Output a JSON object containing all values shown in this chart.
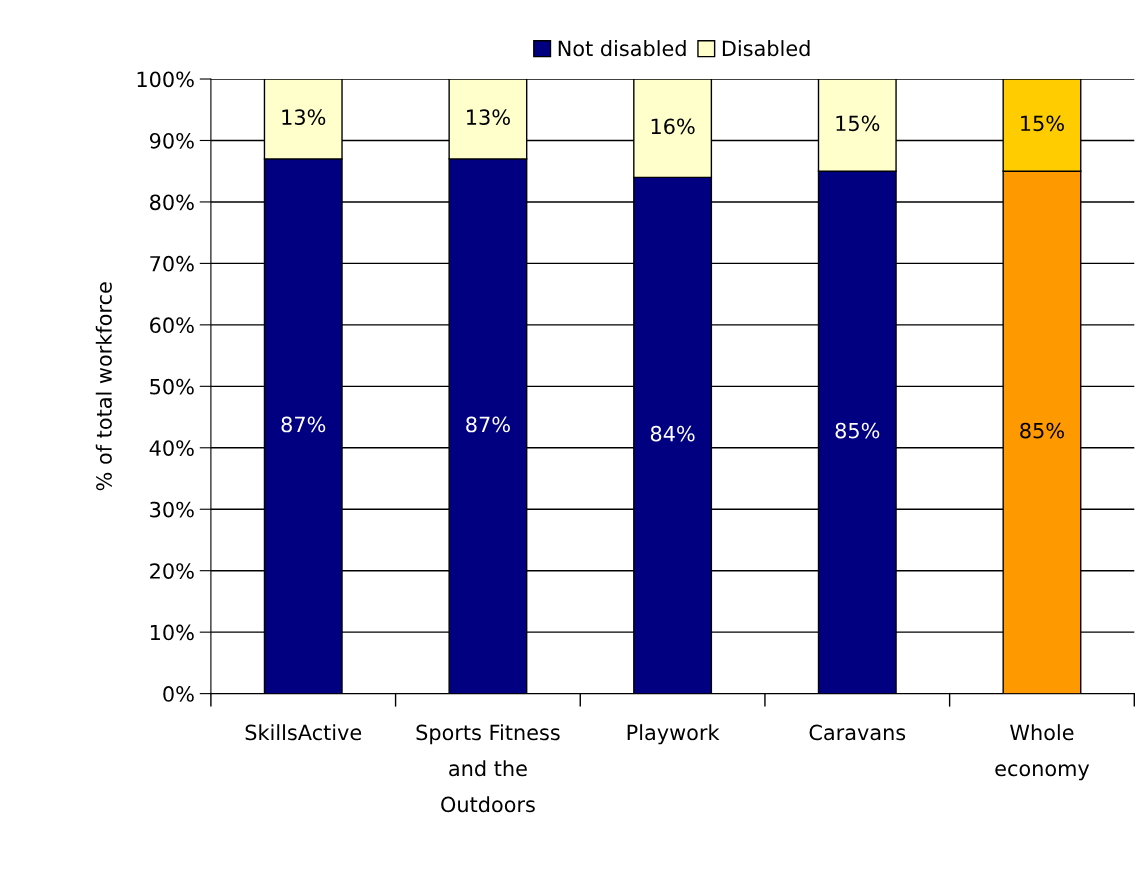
{
  "chart_data": {
    "type": "bar",
    "stacked": true,
    "ylabel": "% of total workforce",
    "categories": [
      "SkillsActive",
      "Sports Fitness\nand the\nOutdoors",
      "Playwork",
      "Caravans",
      "Whole\neconomy"
    ],
    "series": [
      {
        "name": "Not disabled",
        "color": "#000080",
        "colors": [
          "#000080",
          "#000080",
          "#000080",
          "#000080",
          "#ff9900"
        ],
        "values": [
          87,
          87,
          84,
          85,
          85
        ],
        "value_labels": [
          "87%",
          "87%",
          "84%",
          "85%",
          "85%"
        ]
      },
      {
        "name": "Disabled",
        "color": "#ffffcc",
        "colors": [
          "#ffffcc",
          "#ffffcc",
          "#ffffcc",
          "#ffffcc",
          "#ffcc00"
        ],
        "values": [
          13,
          13,
          16,
          15,
          15
        ],
        "value_labels": [
          "13%",
          "13%",
          "16%",
          "15%",
          "15%"
        ]
      }
    ],
    "ylim": [
      0,
      100
    ],
    "yticks": [
      {
        "value": 0,
        "label": "0%"
      },
      {
        "value": 10,
        "label": "10%"
      },
      {
        "value": 20,
        "label": "20%"
      },
      {
        "value": 30,
        "label": "30%"
      },
      {
        "value": 40,
        "label": "40%"
      },
      {
        "value": 50,
        "label": "50%"
      },
      {
        "value": 60,
        "label": "60%"
      },
      {
        "value": 70,
        "label": "70%"
      },
      {
        "value": 80,
        "label": "80%"
      },
      {
        "value": 90,
        "label": "90%"
      },
      {
        "value": 100,
        "label": "100%"
      }
    ],
    "grid": "y",
    "legend": "top"
  }
}
